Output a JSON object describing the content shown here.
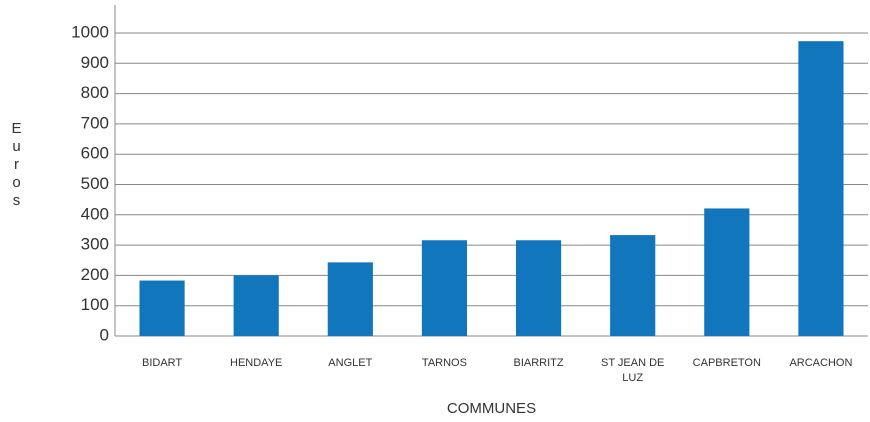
{
  "chart_data": {
    "type": "bar",
    "x_label": "COMMUNES",
    "y_label": "Euros",
    "categories": [
      "BIDART",
      "HENDAYE",
      "ANGLET",
      "TARNOS",
      "BIARRITZ",
      "ST JEAN DE LUZ",
      "CAPBRETON",
      "ARCACHON"
    ],
    "values": [
      183,
      200,
      243,
      316,
      316,
      333,
      421,
      973
    ],
    "color": "#1276bd",
    "ylim": [
      0,
      1000
    ],
    "yticks": [
      0,
      100,
      200,
      300,
      400,
      500,
      600,
      700,
      800,
      900,
      1000
    ],
    "grid": true
  }
}
